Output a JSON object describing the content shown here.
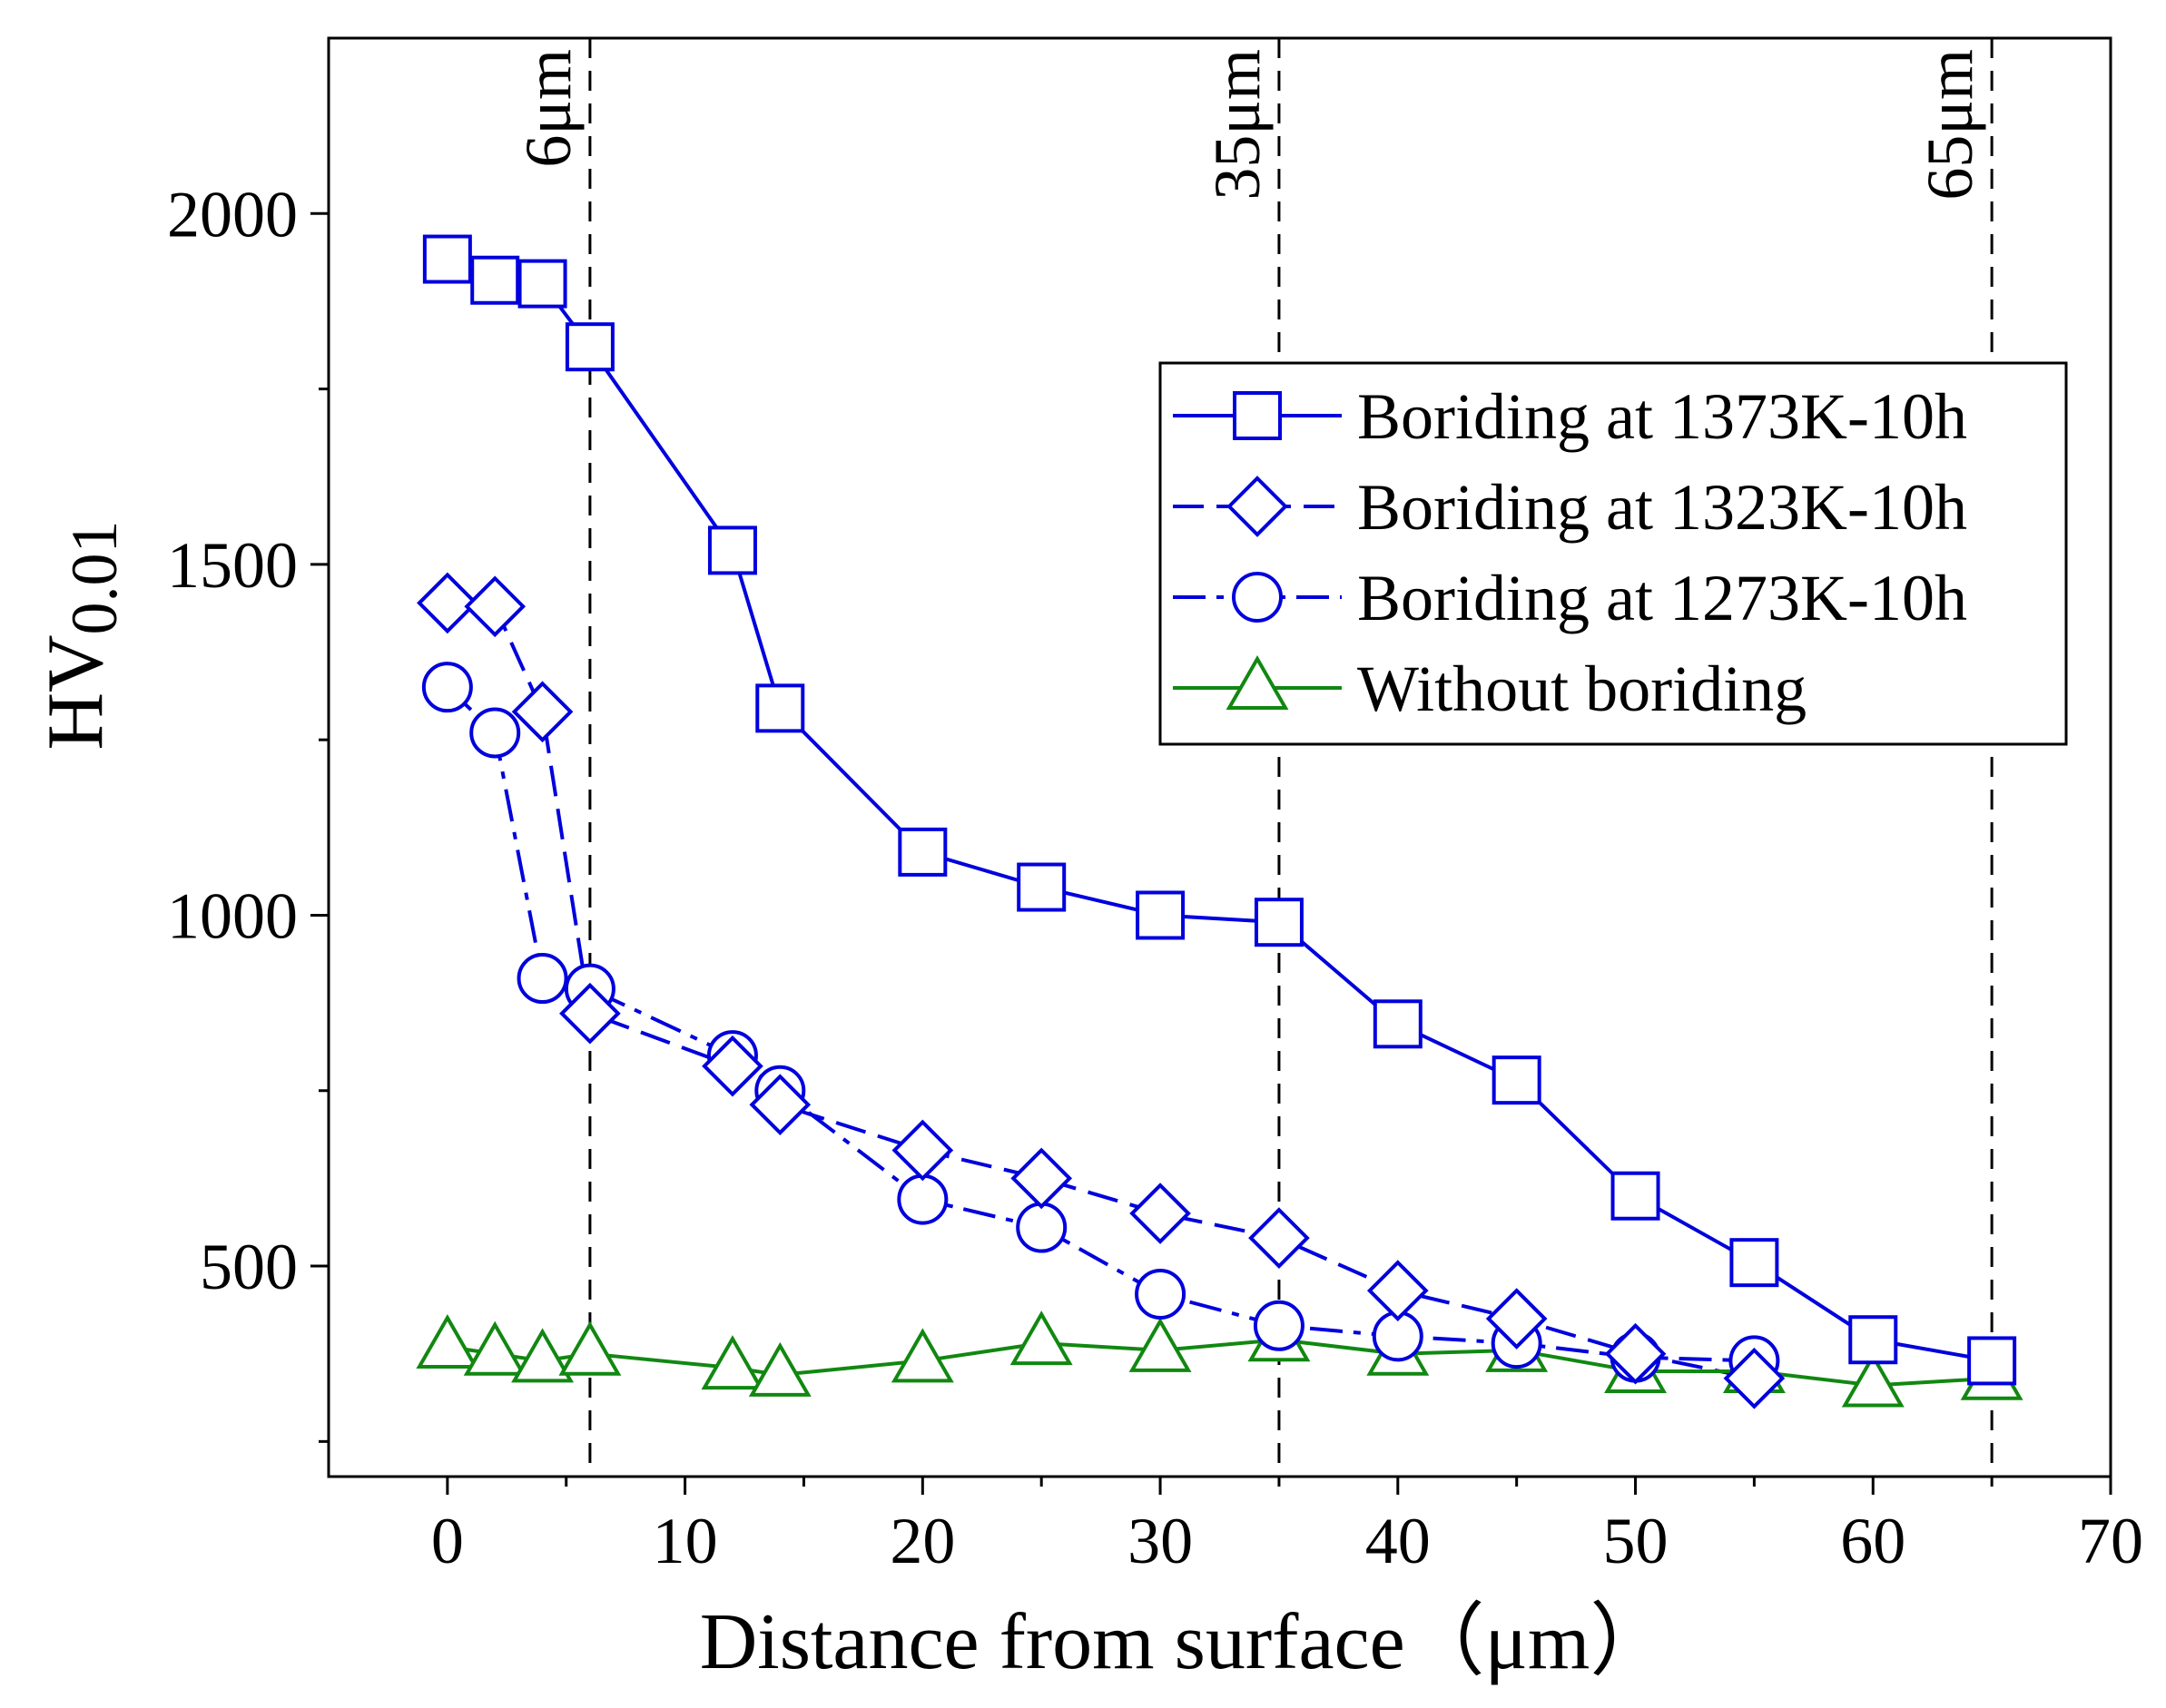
{
  "chart_data": {
    "type": "line",
    "xlabel": "Distance from surface（μm）",
    "ylabel_main": "HV",
    "ylabel_sub": "0.01",
    "xlim": [
      -5,
      70
    ],
    "ylim": [
      200,
      2250
    ],
    "xticks": [
      0,
      10,
      20,
      30,
      40,
      50,
      60,
      70
    ],
    "yticks": [
      500,
      1000,
      1500,
      2000
    ],
    "minor_xticks": [
      5,
      15,
      25,
      35,
      45,
      55,
      65
    ],
    "minor_yticks": [
      250,
      750,
      1250,
      1750
    ],
    "vlines": [
      {
        "x": 6,
        "label": "6μm"
      },
      {
        "x": 35,
        "label": "35μm"
      },
      {
        "x": 65,
        "label": "65μm"
      }
    ],
    "series": [
      {
        "name": "Boriding at 1373K-10h",
        "color": "#0000dd",
        "marker": "square",
        "dash": "solid",
        "x": [
          0,
          2,
          4,
          6,
          12,
          14,
          20,
          25,
          30,
          35,
          40,
          45,
          50,
          55,
          60,
          65
        ],
        "y": [
          1935,
          1905,
          1900,
          1810,
          1520,
          1295,
          1090,
          1040,
          1000,
          990,
          845,
          765,
          600,
          505,
          395,
          365
        ]
      },
      {
        "name": "Boriding at 1323K-10h",
        "color": "#0000dd",
        "marker": "diamond",
        "dash": "longdash",
        "x": [
          0,
          2,
          4,
          6,
          12,
          14,
          20,
          25,
          30,
          35,
          40,
          45,
          50,
          55
        ],
        "y": [
          1445,
          1440,
          1290,
          860,
          785,
          730,
          665,
          625,
          575,
          540,
          465,
          425,
          375,
          340
        ]
      },
      {
        "name": "Boriding at 1273K-10h",
        "color": "#0000dd",
        "marker": "circle",
        "dash": "dashdot",
        "x": [
          0,
          2,
          4,
          6,
          12,
          14,
          20,
          25,
          30,
          35,
          40,
          45,
          50,
          55
        ],
        "y": [
          1325,
          1260,
          910,
          895,
          800,
          750,
          595,
          555,
          460,
          415,
          400,
          390,
          370,
          365
        ]
      },
      {
        "name": "Without boriding",
        "color": "#118811",
        "marker": "triangle",
        "dash": "solid",
        "x": [
          0,
          2,
          4,
          6,
          12,
          14,
          20,
          25,
          30,
          35,
          40,
          45,
          50,
          55,
          60,
          65
        ],
        "y": [
          385,
          375,
          365,
          375,
          355,
          345,
          365,
          390,
          380,
          395,
          375,
          380,
          350,
          350,
          330,
          340
        ]
      }
    ],
    "legend_position": "top-right"
  }
}
